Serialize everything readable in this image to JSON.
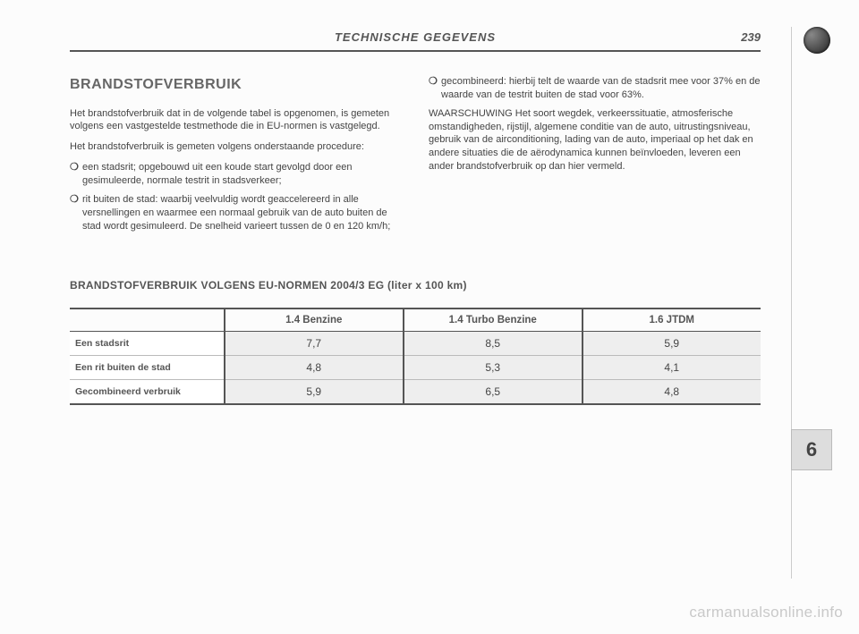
{
  "header": {
    "title": "TECHNISCHE GEGEVENS",
    "page_number": "239"
  },
  "chapter_badge": "6",
  "section": {
    "heading": "BRANDSTOFVERBRUIK",
    "left_paragraphs": [
      "Het brandstofverbruik dat in de volgende tabel is opgenomen, is gemeten volgens een vastgestelde testmethode die in EU-normen is vastgelegd.",
      "Het brandstofverbruik is gemeten volgens onderstaande procedure:"
    ],
    "left_bullets": [
      "een stadsrit; opgebouwd uit een koude start gevolgd door een gesimuleerde, normale testrit in stadsverkeer;",
      "rit buiten de stad: waarbij veelvuldig wordt geaccelereerd in alle versnellingen en waarmee een normaal gebruik van de auto buiten de stad wordt gesimuleerd. De snelheid varieert tussen de 0 en 120 km/h;"
    ],
    "right_bullets": [
      "gecombineerd: hierbij telt de waarde van de stadsrit mee voor 37% en de waarde van de testrit buiten de stad voor 63%."
    ],
    "right_paragraph": "WAARSCHUWING Het soort wegdek, verkeerssituatie, atmosferische omstandigheden, rijstijl, algemene conditie van de auto, uitrustingsniveau, gebruik van de airconditioning, lading van de auto, imperiaal op het dak en andere situaties die de aërodynamica kunnen beïnvloeden, leveren een ander brandstofverbruik op dan hier vermeld."
  },
  "table": {
    "title": "BRANDSTOFVERBRUIK VOLGENS EU-NORMEN 2004/3 EG (liter x 100 km)",
    "columns": [
      "1.4 Benzine",
      "1.4 Turbo Benzine",
      "1.6 JTDM"
    ],
    "rows": [
      {
        "label": "Een stadsrit",
        "values": [
          "7,7",
          "8,5",
          "5,9"
        ]
      },
      {
        "label": "Een rit buiten de stad",
        "values": [
          "4,8",
          "5,3",
          "4,1"
        ]
      },
      {
        "label": "Gecombineerd verbruik",
        "values": [
          "5,9",
          "6,5",
          "4,8"
        ]
      }
    ],
    "colors": {
      "cell_bg": "#eeeeee",
      "border": "#555555",
      "text": "#444444"
    }
  },
  "watermark": "carmanualsonline.info"
}
